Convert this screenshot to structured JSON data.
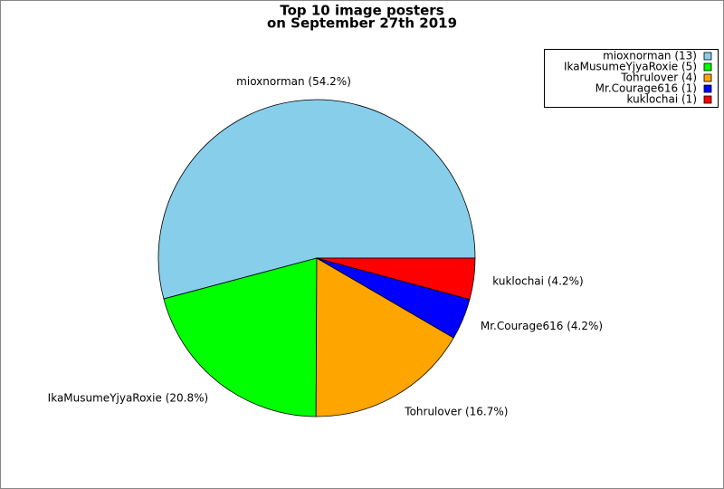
{
  "chart_data": {
    "type": "pie",
    "title": [
      "Top 10 image posters",
      "on September 27th 2019"
    ],
    "slice_labels": [
      "mioxnorman (54.2%)",
      "IkaMusumeYjyaRoxie (20.8%)",
      "Tohrulover (16.7%)",
      "Mr.Courage616 (4.2%)",
      "kuklochai (4.2%)"
    ],
    "values": [
      54.2,
      20.8,
      16.7,
      4.2,
      4.2
    ],
    "legend_labels": [
      "mioxnorman (13)",
      "IkaMusumeYjyaRoxie (5)",
      "Tohrulover (4)",
      "Mr.Courage616 (1)",
      "kuklochai (1)"
    ],
    "colors": [
      "#87ceeb",
      "#00ff00",
      "#ffa500",
      "#0000ff",
      "#ff0000"
    ],
    "legend": "upper right"
  }
}
